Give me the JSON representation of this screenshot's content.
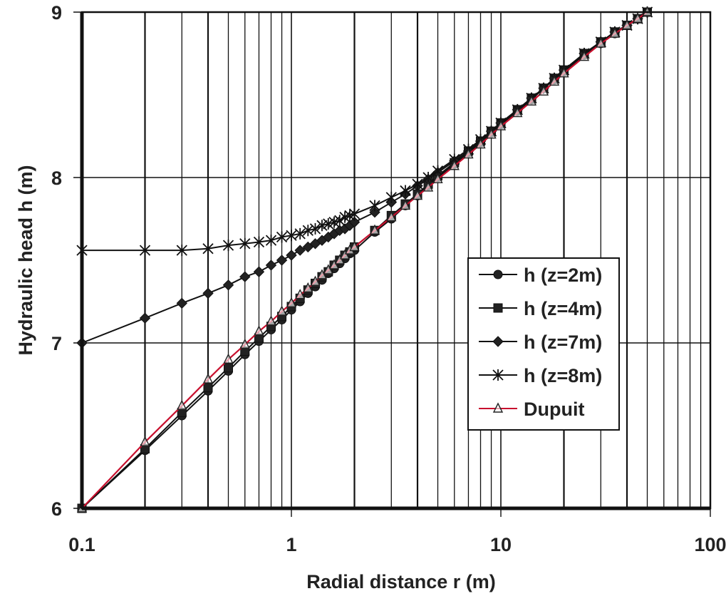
{
  "chart_data": {
    "type": "line",
    "title": "",
    "xlabel": "Radial distance  r (m)",
    "ylabel": "Hydraulic head  h (m)",
    "xscale": "log",
    "xlim": [
      0.1,
      100
    ],
    "ylim": [
      6,
      9
    ],
    "x_tick_labels": [
      "0.1",
      "1",
      "10",
      "100"
    ],
    "y_tick_labels": [
      "6",
      "7",
      "8",
      "9"
    ],
    "grid": {
      "x": "log-minor",
      "y": "major"
    },
    "legend_position": "right-middle",
    "series": [
      {
        "name": "h (z=2m)",
        "marker": "circle",
        "color": "#111111",
        "x": [
          0.1,
          0.2,
          0.3,
          0.4,
          0.5,
          0.6,
          0.7,
          0.8,
          0.9,
          1.0,
          1.1,
          1.2,
          1.3,
          1.4,
          1.5,
          1.6,
          1.7,
          1.8,
          1.9,
          2.0,
          2.5,
          3.0,
          3.5,
          4.0,
          4.5,
          5,
          6,
          7,
          8,
          9,
          10,
          12,
          14,
          16,
          18,
          20,
          25,
          30,
          35,
          40,
          45,
          50
        ],
        "y": [
          6.0,
          6.35,
          6.56,
          6.71,
          6.83,
          6.93,
          7.01,
          7.08,
          7.14,
          7.2,
          7.25,
          7.3,
          7.34,
          7.38,
          7.42,
          7.45,
          7.48,
          7.51,
          7.54,
          7.56,
          7.67,
          7.75,
          7.83,
          7.89,
          7.95,
          8.0,
          8.08,
          8.15,
          8.21,
          8.27,
          8.32,
          8.4,
          8.47,
          8.54,
          8.59,
          8.64,
          8.74,
          8.81,
          8.87,
          8.92,
          8.96,
          9.0
        ]
      },
      {
        "name": "h (z=4m)",
        "marker": "square",
        "color": "#111111",
        "x": [
          0.1,
          0.2,
          0.3,
          0.4,
          0.5,
          0.6,
          0.7,
          0.8,
          0.9,
          1.0,
          1.1,
          1.2,
          1.3,
          1.4,
          1.5,
          1.6,
          1.7,
          1.8,
          1.9,
          2.0,
          2.5,
          3.0,
          3.5,
          4.0,
          4.5,
          5,
          6,
          7,
          8,
          9,
          10,
          12,
          14,
          16,
          18,
          20,
          25,
          30,
          35,
          40,
          45,
          50
        ],
        "y": [
          6.0,
          6.36,
          6.58,
          6.73,
          6.85,
          6.95,
          7.03,
          7.1,
          7.16,
          7.22,
          7.27,
          7.32,
          7.36,
          7.4,
          7.43,
          7.47,
          7.5,
          7.53,
          7.55,
          7.58,
          7.68,
          7.77,
          7.84,
          7.9,
          7.96,
          8.01,
          8.09,
          8.16,
          8.22,
          8.28,
          8.33,
          8.41,
          8.48,
          8.54,
          8.6,
          8.65,
          8.75,
          8.82,
          8.88,
          8.92,
          8.96,
          9.0
        ]
      },
      {
        "name": "h (z=7m)",
        "marker": "diamond",
        "color": "#111111",
        "x": [
          0.1,
          0.2,
          0.3,
          0.4,
          0.5,
          0.6,
          0.7,
          0.8,
          0.9,
          1.0,
          1.1,
          1.2,
          1.3,
          1.4,
          1.5,
          1.6,
          1.7,
          1.8,
          1.9,
          2.0,
          2.5,
          3.0,
          3.5,
          4.0,
          4.5,
          5,
          6,
          7,
          8,
          9,
          10,
          12,
          14,
          16,
          18,
          20,
          25,
          30,
          35,
          40,
          45,
          50
        ],
        "y": [
          7.0,
          7.15,
          7.24,
          7.3,
          7.35,
          7.4,
          7.43,
          7.47,
          7.5,
          7.53,
          7.56,
          7.58,
          7.6,
          7.62,
          7.64,
          7.66,
          7.68,
          7.69,
          7.71,
          7.73,
          7.79,
          7.85,
          7.9,
          7.95,
          7.99,
          8.03,
          8.1,
          8.16,
          8.22,
          8.28,
          8.33,
          8.41,
          8.48,
          8.54,
          8.6,
          8.65,
          8.75,
          8.82,
          8.88,
          8.92,
          8.96,
          9.0
        ]
      },
      {
        "name": "h (z=8m)",
        "marker": "asterisk",
        "color": "#111111",
        "x": [
          0.1,
          0.2,
          0.3,
          0.4,
          0.5,
          0.6,
          0.7,
          0.8,
          0.9,
          1.0,
          1.1,
          1.2,
          1.3,
          1.4,
          1.5,
          1.6,
          1.7,
          1.8,
          1.9,
          2.0,
          2.5,
          3.0,
          3.5,
          4.0,
          4.5,
          5,
          6,
          7,
          8,
          9,
          10,
          12,
          14,
          16,
          18,
          20,
          25,
          30,
          35,
          40,
          45,
          50
        ],
        "y": [
          7.56,
          7.56,
          7.56,
          7.57,
          7.59,
          7.6,
          7.61,
          7.62,
          7.64,
          7.65,
          7.66,
          7.68,
          7.69,
          7.71,
          7.72,
          7.73,
          7.74,
          7.76,
          7.77,
          7.78,
          7.83,
          7.88,
          7.92,
          7.96,
          8.0,
          8.04,
          8.11,
          8.17,
          8.23,
          8.28,
          8.33,
          8.41,
          8.48,
          8.54,
          8.6,
          8.65,
          8.75,
          8.82,
          8.88,
          8.92,
          8.96,
          9.0
        ]
      },
      {
        "name": "Dupuit",
        "marker": "triangle-open",
        "color": "#c8102e",
        "x": [
          0.1,
          0.2,
          0.3,
          0.4,
          0.5,
          0.6,
          0.7,
          0.8,
          0.9,
          1.0,
          1.1,
          1.2,
          1.3,
          1.4,
          1.5,
          1.6,
          1.7,
          1.8,
          1.9,
          2.0,
          2.5,
          3.0,
          3.5,
          4.0,
          4.5,
          5,
          6,
          7,
          8,
          9,
          10,
          12,
          14,
          16,
          18,
          20,
          25,
          30,
          35,
          40,
          45,
          50
        ],
        "y": [
          6.0,
          6.4,
          6.62,
          6.78,
          6.9,
          6.99,
          7.07,
          7.13,
          7.19,
          7.24,
          7.29,
          7.33,
          7.37,
          7.41,
          7.44,
          7.47,
          7.5,
          7.53,
          7.56,
          7.58,
          7.68,
          7.76,
          7.83,
          7.89,
          7.94,
          7.99,
          8.07,
          8.14,
          8.2,
          8.26,
          8.31,
          8.39,
          8.46,
          8.52,
          8.58,
          8.63,
          8.73,
          8.81,
          8.87,
          8.92,
          8.96,
          9.0
        ]
      }
    ]
  }
}
